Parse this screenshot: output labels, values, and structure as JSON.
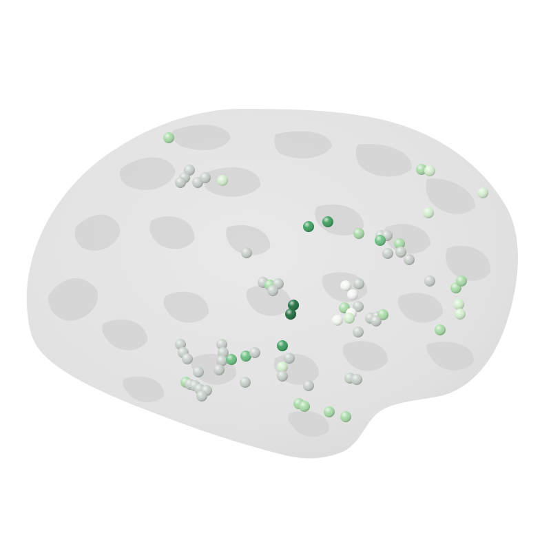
{
  "scene": {
    "background": "#ffffff",
    "surface": {
      "base_color": "#e4e4e4",
      "sulcus_color": "#d2d2d2",
      "edge_color": "#dcdcdc"
    },
    "palette": {
      "dark": "#1f6e3f",
      "mid": "#3d9e5e",
      "medium": "#6cc083",
      "light": "#a9dba9",
      "pale": "#d6eed0",
      "grey": "#c8cfc8",
      "white": "#f2f7f0"
    }
  }
}
